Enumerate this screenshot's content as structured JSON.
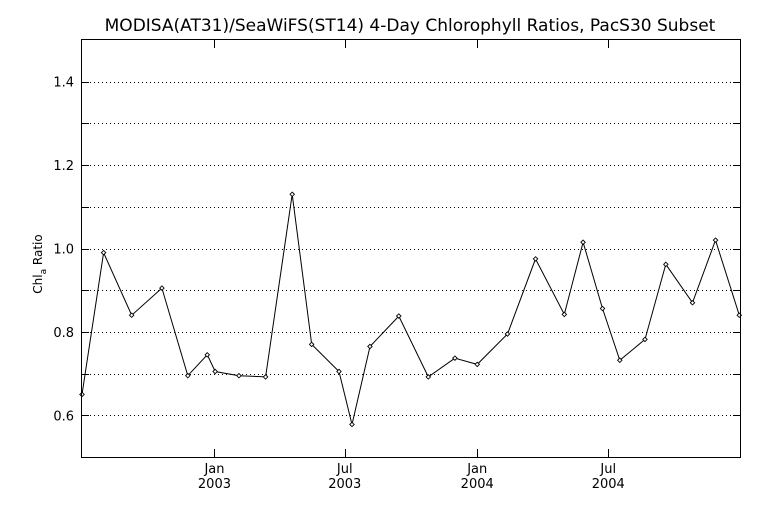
{
  "chart_data": {
    "type": "line",
    "title": "MODISA(AT31)/SeaWiFS(ST14) 4-Day Chlorophyll Ratios, PacS30 Subset",
    "ylabel_main": "Chl",
    "ylabel_sub": "a",
    "ylabel_rest": " Ratio",
    "xlabel": "",
    "ylim": [
      0.5,
      1.5
    ],
    "xlim": [
      "2002-07-01",
      "2004-12-31"
    ],
    "yticks": [
      {
        "value": 0.6,
        "label": "0.6"
      },
      {
        "value": 0.8,
        "label": "0.8"
      },
      {
        "value": 1.0,
        "label": "1.0"
      },
      {
        "value": 1.2,
        "label": "1.2"
      },
      {
        "value": 1.4,
        "label": "1.4"
      }
    ],
    "grid_y": [
      0.6,
      0.7,
      0.8,
      0.9,
      1.0,
      1.1,
      1.2,
      1.3,
      1.4
    ],
    "xticks": [
      {
        "date": "2003-01-01",
        "month": "Jan",
        "year": "2003"
      },
      {
        "date": "2003-07-01",
        "month": "Jul",
        "year": "2003"
      },
      {
        "date": "2004-01-01",
        "month": "Jan",
        "year": "2004"
      },
      {
        "date": "2004-07-01",
        "month": "Jul",
        "year": "2004"
      }
    ],
    "grid": true,
    "line_color": "#000000",
    "series": [
      {
        "points": [
          {
            "x": "2002-07-01",
            "y": 0.65
          },
          {
            "x": "2002-07-31",
            "y": 0.99
          },
          {
            "x": "2002-09-08",
            "y": 0.84
          },
          {
            "x": "2002-10-20",
            "y": 0.905
          },
          {
            "x": "2002-11-25",
            "y": 0.695
          },
          {
            "x": "2002-12-22",
            "y": 0.745
          },
          {
            "x": "2003-01-02",
            "y": 0.705
          },
          {
            "x": "2003-02-04",
            "y": 0.695
          },
          {
            "x": "2003-03-13",
            "y": 0.692
          },
          {
            "x": "2003-04-19",
            "y": 1.13
          },
          {
            "x": "2003-05-16",
            "y": 0.77
          },
          {
            "x": "2003-06-23",
            "y": 0.705
          },
          {
            "x": "2003-07-11",
            "y": 0.578
          },
          {
            "x": "2003-08-05",
            "y": 0.765
          },
          {
            "x": "2003-09-14",
            "y": 0.838
          },
          {
            "x": "2003-10-25",
            "y": 0.692
          },
          {
            "x": "2003-12-01",
            "y": 0.737
          },
          {
            "x": "2004-01-01",
            "y": 0.722
          },
          {
            "x": "2004-02-12",
            "y": 0.795
          },
          {
            "x": "2004-03-22",
            "y": 0.975
          },
          {
            "x": "2004-05-01",
            "y": 0.842
          },
          {
            "x": "2004-05-27",
            "y": 1.015
          },
          {
            "x": "2004-06-23",
            "y": 0.856
          },
          {
            "x": "2004-07-17",
            "y": 0.732
          },
          {
            "x": "2004-08-21",
            "y": 0.782
          },
          {
            "x": "2004-09-19",
            "y": 0.962
          },
          {
            "x": "2004-10-26",
            "y": 0.87
          },
          {
            "x": "2004-11-27",
            "y": 1.02
          },
          {
            "x": "2004-12-30",
            "y": 0.84
          }
        ]
      }
    ]
  }
}
